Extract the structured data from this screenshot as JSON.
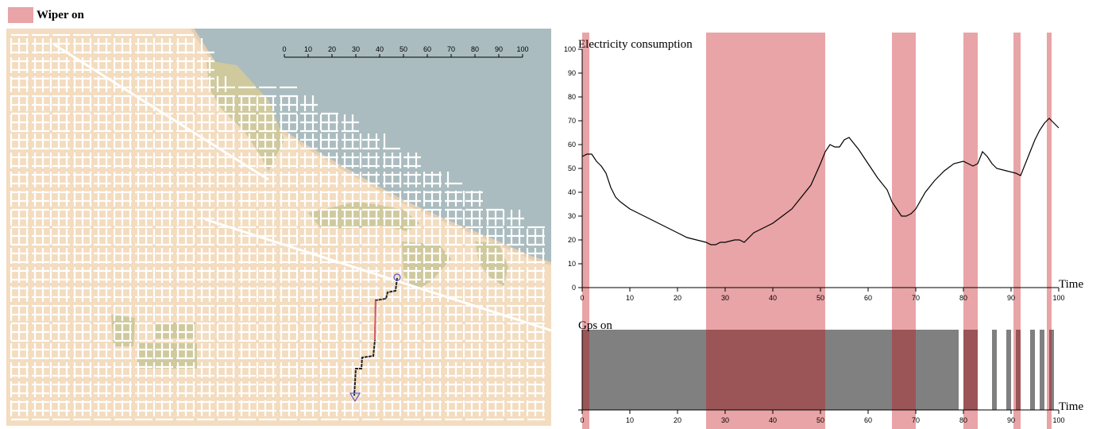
{
  "legend": {
    "label": "Wiper on",
    "color": "#e8a4a6"
  },
  "map": {
    "scale_ticks": [
      0,
      10,
      20,
      30,
      40,
      50,
      60,
      70,
      80,
      90,
      100
    ],
    "colors": {
      "land": "#f3dcbf",
      "water": "#aabcbf",
      "park": "#cfc99d",
      "road": "#ffffff",
      "route": "#222222",
      "route_wiper": "#d96060",
      "marker": "#5555cc"
    }
  },
  "chart_data": [
    {
      "type": "line",
      "title": "Electricity consumption",
      "xlabel": "Time",
      "ylabel": "",
      "xlim": [
        0,
        100
      ],
      "ylim": [
        0,
        100
      ],
      "xticks": [
        0,
        10,
        20,
        30,
        40,
        50,
        60,
        70,
        80,
        90,
        100
      ],
      "yticks": [
        0,
        10,
        20,
        30,
        40,
        50,
        60,
        70,
        80,
        90,
        100
      ],
      "x": [
        0,
        1,
        2,
        3,
        4,
        5,
        6,
        7,
        8,
        10,
        12,
        14,
        16,
        18,
        20,
        22,
        24,
        26,
        27,
        28,
        29,
        30,
        32,
        33,
        34,
        36,
        38,
        40,
        42,
        44,
        46,
        48,
        50,
        51,
        52,
        53,
        54,
        55,
        56,
        58,
        60,
        62,
        64,
        65,
        66,
        67,
        68,
        69,
        70,
        72,
        74,
        76,
        78,
        80,
        82,
        83,
        84,
        85,
        86,
        87,
        89,
        91,
        92,
        93,
        94,
        95,
        96,
        97,
        98,
        99,
        100
      ],
      "values": [
        55,
        56,
        56,
        53,
        51,
        48,
        42,
        38,
        36,
        33,
        31,
        29,
        27,
        25,
        23,
        21,
        20,
        19,
        18,
        18,
        19,
        19,
        20,
        20,
        19,
        23,
        25,
        27,
        30,
        33,
        38,
        43,
        52,
        57,
        60,
        59,
        59,
        62,
        63,
        58,
        52,
        46,
        41,
        36,
        33,
        30,
        30,
        31,
        33,
        40,
        45,
        49,
        52,
        53,
        51,
        52,
        57,
        55,
        52,
        50,
        49,
        48,
        47,
        52,
        57,
        62,
        66,
        69,
        71,
        69,
        67
      ],
      "line_color": "#000000"
    },
    {
      "type": "bar",
      "title": "Gps on",
      "xlabel": "Time",
      "xlim": [
        0,
        100
      ],
      "xticks": [
        0,
        10,
        20,
        30,
        40,
        50,
        60,
        70,
        80,
        90,
        100
      ],
      "intervals": [
        [
          0,
          79
        ],
        [
          80,
          83
        ],
        [
          86,
          87
        ],
        [
          89,
          90
        ],
        [
          91,
          92
        ],
        [
          94,
          95
        ],
        [
          96,
          97
        ],
        [
          98,
          99
        ]
      ],
      "color": "#808080"
    }
  ],
  "wiper_intervals": [
    [
      0,
      1.5
    ],
    [
      26,
      51
    ],
    [
      65,
      70
    ],
    [
      80,
      83
    ],
    [
      90.5,
      92
    ],
    [
      97.5,
      98.5
    ]
  ]
}
